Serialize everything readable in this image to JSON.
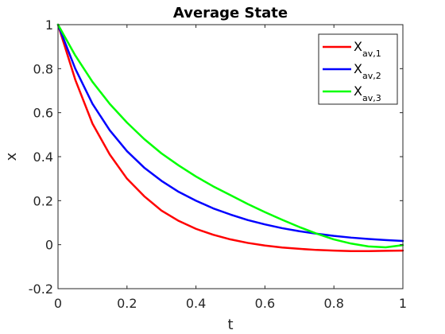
{
  "chart_data": {
    "type": "line",
    "title": "Average State",
    "xlabel": "t",
    "ylabel": "x",
    "xlim": [
      0,
      1
    ],
    "ylim": [
      -0.2,
      1
    ],
    "xticks": [
      0,
      0.2,
      0.4,
      0.6,
      0.8,
      1
    ],
    "xtick_labels": [
      "0",
      "0.2",
      "0.4",
      "0.6",
      "0.8",
      "1"
    ],
    "yticks": [
      -0.2,
      0,
      0.2,
      0.4,
      0.6,
      0.8,
      1
    ],
    "ytick_labels": [
      "-0.2",
      "0",
      "0.2",
      "0.4",
      "0.6",
      "0.8",
      "1"
    ],
    "grid": false,
    "legend_position": "top-right",
    "x": [
      0,
      0.05,
      0.1,
      0.15,
      0.2,
      0.25,
      0.3,
      0.35,
      0.4,
      0.45,
      0.5,
      0.55,
      0.6,
      0.65,
      0.7,
      0.75,
      0.8,
      0.85,
      0.9,
      0.95,
      1
    ],
    "series": [
      {
        "name": "X",
        "subscript": "av,1",
        "color": "#ff0000",
        "values": [
          1.0,
          0.75,
          0.55,
          0.41,
          0.3,
          0.22,
          0.155,
          0.108,
          0.072,
          0.045,
          0.024,
          0.008,
          -0.004,
          -0.013,
          -0.019,
          -0.024,
          -0.027,
          -0.029,
          -0.029,
          -0.028,
          -0.027
        ]
      },
      {
        "name": "X",
        "subscript": "av,2",
        "color": "#0000ff",
        "values": [
          1.0,
          0.8,
          0.64,
          0.52,
          0.425,
          0.35,
          0.29,
          0.24,
          0.2,
          0.165,
          0.137,
          0.112,
          0.092,
          0.075,
          0.061,
          0.05,
          0.04,
          0.032,
          0.026,
          0.021,
          0.017
        ]
      },
      {
        "name": "X",
        "subscript": "av,3",
        "color": "#00ff00",
        "values": [
          1.0,
          0.86,
          0.74,
          0.64,
          0.555,
          0.48,
          0.415,
          0.36,
          0.31,
          0.265,
          0.225,
          0.185,
          0.148,
          0.113,
          0.08,
          0.05,
          0.024,
          0.005,
          -0.008,
          -0.012,
          -0.002
        ]
      }
    ]
  }
}
